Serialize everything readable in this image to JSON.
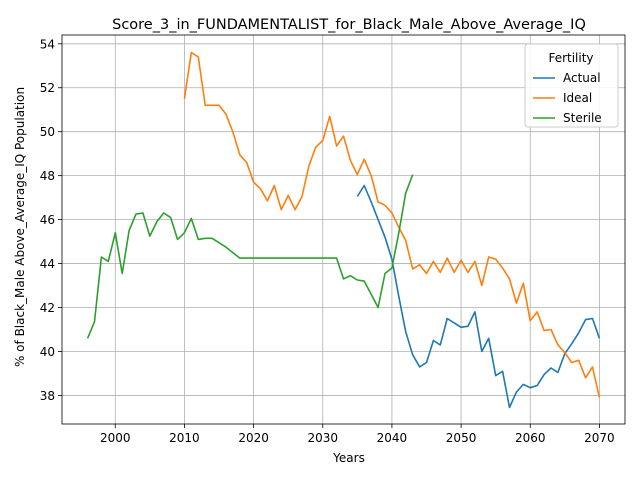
{
  "chart_data": {
    "type": "line",
    "title": "Score_3_in_FUNDAMENTALIST_for_Black_Male_Above_Average_IQ",
    "xlabel": "Years",
    "ylabel": "% of Black_Male Above_Average_IQ Population",
    "xlim": [
      1992.3,
      2073.7
    ],
    "ylim": [
      36.7,
      54.4
    ],
    "xticks": [
      2000,
      2010,
      2020,
      2030,
      2040,
      2050,
      2060,
      2070
    ],
    "yticks": [
      38,
      40,
      42,
      44,
      46,
      48,
      50,
      52,
      54
    ],
    "grid": true,
    "legend": {
      "title": "Fertility",
      "placement": "top-right"
    },
    "series": [
      {
        "name": "Actual",
        "color": "#1f77b4",
        "x": [
          2035,
          2036,
          2037,
          2038,
          2039,
          2040,
          2041,
          2042,
          2043,
          2044,
          2045,
          2046,
          2047,
          2048,
          2049,
          2050,
          2051,
          2052,
          2053,
          2054,
          2055,
          2056,
          2057,
          2058,
          2059,
          2060,
          2061,
          2062,
          2063,
          2064,
          2065,
          2066,
          2067,
          2068,
          2069,
          2070
        ],
        "y": [
          47.05,
          47.55,
          46.8,
          46.0,
          45.2,
          44.2,
          42.5,
          40.9,
          39.85,
          39.3,
          39.5,
          40.5,
          40.3,
          41.5,
          41.3,
          41.1,
          41.15,
          41.8,
          40.0,
          40.6,
          38.9,
          39.1,
          37.45,
          38.15,
          38.5,
          38.35,
          38.45,
          38.95,
          39.25,
          39.05,
          39.9,
          40.35,
          40.85,
          41.45,
          41.5,
          40.6
        ]
      },
      {
        "name": "Ideal",
        "color": "#ff7f0e",
        "x": [
          2010,
          2011,
          2012,
          2013,
          2014,
          2015,
          2016,
          2017,
          2018,
          2019,
          2020,
          2021,
          2022,
          2023,
          2024,
          2025,
          2026,
          2027,
          2028,
          2029,
          2030,
          2031,
          2032,
          2033,
          2034,
          2035,
          2036,
          2037,
          2038,
          2039,
          2040,
          2041,
          2042,
          2043,
          2044,
          2045,
          2046,
          2047,
          2048,
          2049,
          2050,
          2051,
          2052,
          2053,
          2054,
          2055,
          2056,
          2057,
          2058,
          2059,
          2060,
          2061,
          2062,
          2063,
          2064,
          2065,
          2066,
          2067,
          2068,
          2069,
          2070
        ],
        "y": [
          51.5,
          53.6,
          53.4,
          51.2,
          51.2,
          51.2,
          50.8,
          50.0,
          48.95,
          48.6,
          47.7,
          47.4,
          46.85,
          47.55,
          46.45,
          47.1,
          46.45,
          47.05,
          48.45,
          49.3,
          49.6,
          50.7,
          49.35,
          49.8,
          48.7,
          48.05,
          48.75,
          48.0,
          46.8,
          46.65,
          46.3,
          45.65,
          45.05,
          43.75,
          43.95,
          43.55,
          44.1,
          43.6,
          44.25,
          43.6,
          44.15,
          43.6,
          44.1,
          43.0,
          44.3,
          44.2,
          43.8,
          43.3,
          42.2,
          43.1,
          41.4,
          41.8,
          40.95,
          41.0,
          40.3,
          39.95,
          39.5,
          39.6,
          38.8,
          39.3,
          37.9
        ]
      },
      {
        "name": "Sterile",
        "color": "#2ca02c",
        "x": [
          1996,
          1997,
          1998,
          1999,
          2000,
          2001,
          2002,
          2003,
          2004,
          2005,
          2006,
          2007,
          2008,
          2009,
          2010,
          2011,
          2012,
          2013,
          2014,
          2015,
          2016,
          2017,
          2018,
          2019,
          2020,
          2021,
          2022,
          2023,
          2024,
          2025,
          2026,
          2027,
          2028,
          2029,
          2030,
          2031,
          2032,
          2033,
          2034,
          2035,
          2036,
          2037,
          2038,
          2039,
          2040,
          2041,
          2042,
          2043
        ],
        "y": [
          40.6,
          41.35,
          44.3,
          44.1,
          45.4,
          43.55,
          45.5,
          46.25,
          46.3,
          45.25,
          45.9,
          46.3,
          46.1,
          45.1,
          45.4,
          46.05,
          45.1,
          45.15,
          45.15,
          44.95,
          44.75,
          44.5,
          44.25,
          44.25,
          44.25,
          44.25,
          44.25,
          44.25,
          44.25,
          44.25,
          44.25,
          44.25,
          44.25,
          44.25,
          44.25,
          44.25,
          44.25,
          43.3,
          43.45,
          43.25,
          43.2,
          42.6,
          42.0,
          43.55,
          43.8,
          45.4,
          47.2,
          48.05
        ]
      }
    ]
  }
}
